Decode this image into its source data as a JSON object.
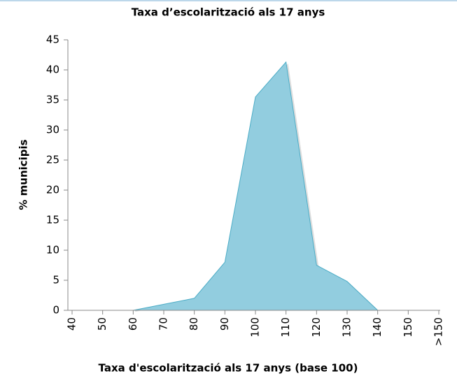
{
  "chart_data": {
    "type": "area",
    "title": "Taxa d’escolarització als 17 anys",
    "xlabel": "Taxa d'escolarització als 17 anys (base 100)",
    "ylabel": "% municipis",
    "categories": [
      "40",
      "50",
      "60",
      "70",
      "80",
      "90",
      "100",
      "110",
      "120",
      "130",
      "140",
      "150",
      ">150"
    ],
    "series": [
      {
        "name": "% municipis",
        "color": "#4bacc6",
        "fill": "#92cddf",
        "values": [
          null,
          null,
          0,
          1,
          2,
          8,
          35.5,
          41.3,
          7.5,
          4.8,
          0,
          null,
          null
        ]
      }
    ],
    "ylim": [
      0,
      45
    ],
    "yticks": [
      0,
      5,
      10,
      15,
      20,
      25,
      30,
      35,
      40,
      45
    ]
  }
}
